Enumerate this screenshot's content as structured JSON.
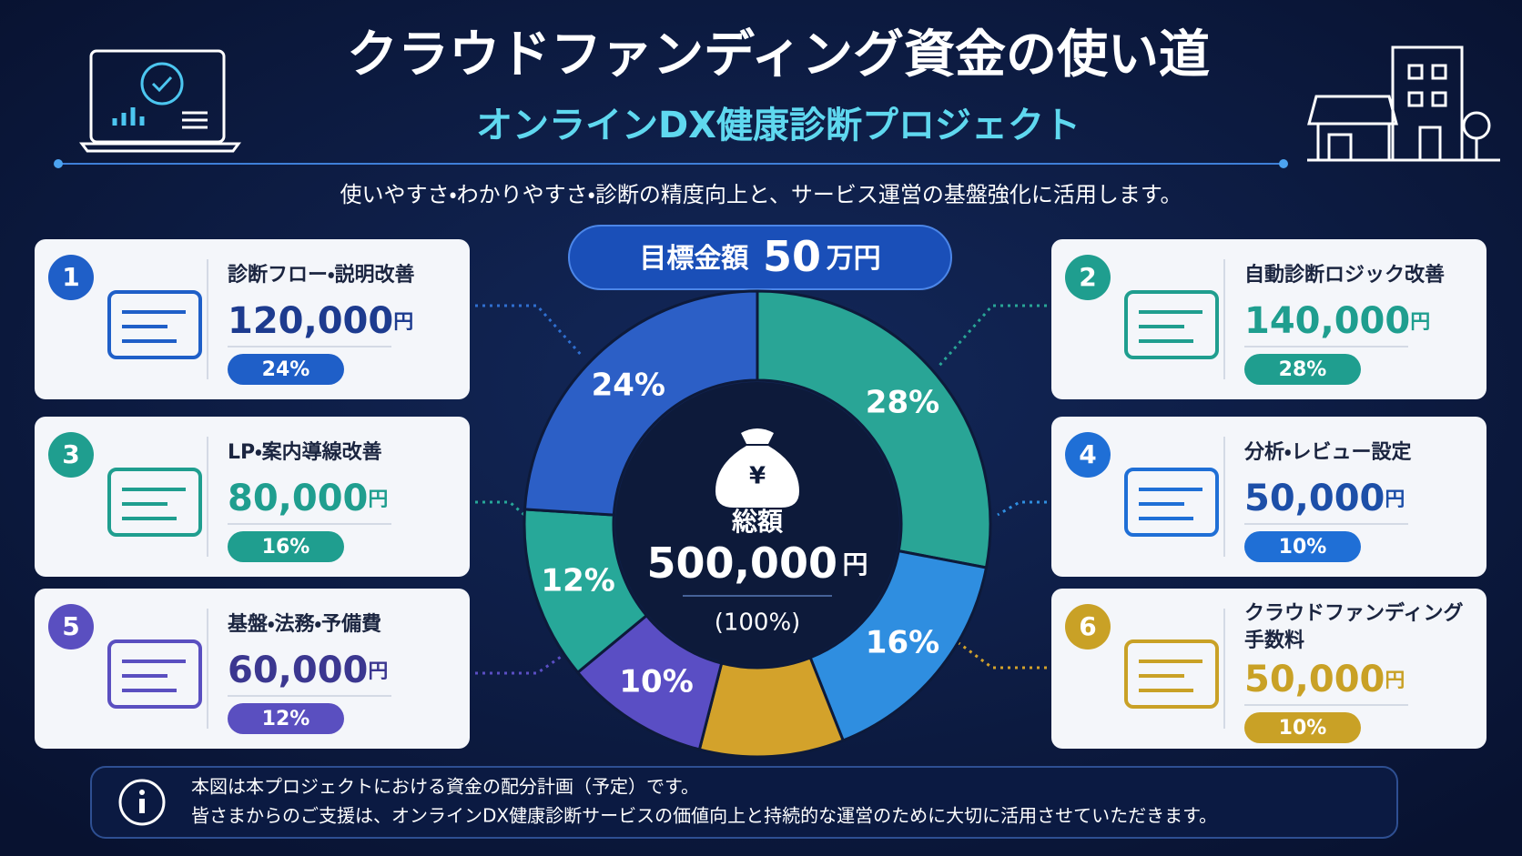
{
  "header": {
    "title": "クラウドファンディング資金の使い道",
    "subtitle": "オンラインDX健康診断プロジェクト",
    "tagline": "使いやすさ・わかりやすさ・診断の精度向上と、サービス運営の基盤強化に活用します。"
  },
  "target": {
    "label": "目標金額",
    "amount": "50",
    "unit": "万円"
  },
  "center": {
    "label": "総額",
    "amount": "500,000",
    "unit": "円",
    "share": "(100%)"
  },
  "chart_data": {
    "type": "pie",
    "values": [
      28,
      16,
      10,
      10,
      12,
      24
    ],
    "value_labels": [
      "28%",
      "16%",
      null,
      "10%",
      "12%",
      "24%"
    ],
    "colors": [
      "#29a596",
      "#2f8ee0",
      "#d3a22b",
      "#5a4ec4",
      "#27a899",
      "#2c5fc6"
    ]
  },
  "cards": [
    {
      "number": "1",
      "title": "診断フロー・説明改善",
      "amount": "120,000",
      "unit": "円",
      "percent": "24%",
      "color": "#1f5fc8",
      "amount_color": "#1d3b8f",
      "side": "left",
      "row": 0
    },
    {
      "number": "2",
      "title": "自動診断ロジック改善",
      "amount": "140,000",
      "unit": "円",
      "percent": "28%",
      "color": "#1f9e8f",
      "amount_color": "#1f9e8f",
      "side": "right",
      "row": 0
    },
    {
      "number": "3",
      "title": "LP・案内導線改善",
      "amount": "80,000",
      "unit": "円",
      "percent": "16%",
      "color": "#1f9e8f",
      "amount_color": "#1f9e8f",
      "side": "left",
      "row": 1
    },
    {
      "number": "4",
      "title": "分析・レビュー設定",
      "amount": "50,000",
      "unit": "円",
      "percent": "10%",
      "color": "#1f6fd6",
      "amount_color": "#1d4fa8",
      "side": "right",
      "row": 1
    },
    {
      "number": "5",
      "title": "基盤・法務・予備費",
      "amount": "60,000",
      "unit": "円",
      "percent": "12%",
      "color": "#5a4fc0",
      "amount_color": "#3b3790",
      "side": "left",
      "row": 2
    },
    {
      "number": "6",
      "title": [
        "クラウドファンディング",
        "手数料"
      ],
      "amount": "50,000",
      "unit": "円",
      "percent": "10%",
      "color": "#c9a126",
      "amount_color": "#c9a126",
      "side": "right",
      "row": 2
    }
  ],
  "footer": {
    "lines": [
      "本図は本プロジェクトにおける資金の配分計画（予定）です。",
      "皆さまからのご支援は、オンラインDX健康診断サービスの価値向上と持続的な運営のために大切に活用させていただきます。"
    ]
  }
}
